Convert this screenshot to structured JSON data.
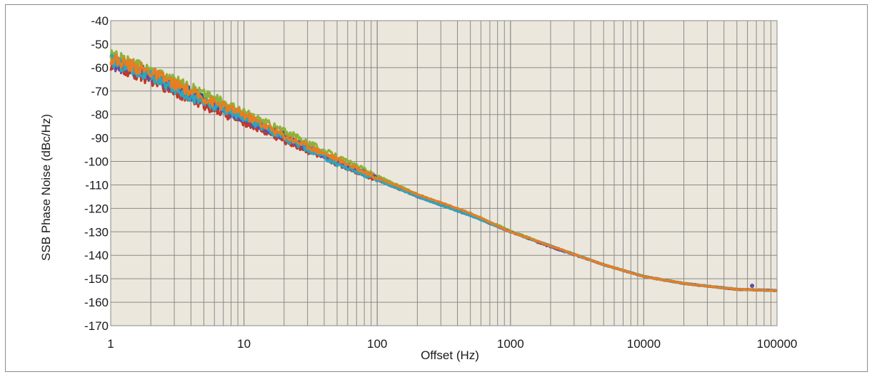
{
  "chart_data": {
    "type": "line",
    "xlabel": "Offset (Hz)",
    "ylabel": "SSB Phase Noise (dBc/Hz)",
    "x_scale": "log",
    "xlim": [
      1,
      100000
    ],
    "ylim": [
      -170,
      -40
    ],
    "x_ticks": [
      "1",
      "10",
      "100",
      "1000",
      "10000",
      "100000"
    ],
    "y_ticks": [
      "-40",
      "-50",
      "-60",
      "-70",
      "-80",
      "-90",
      "-100",
      "-110",
      "-120",
      "-130",
      "-140",
      "-150",
      "-160",
      "-170"
    ],
    "grid": true,
    "plot_background": "#ece7dc",
    "gridline_color": "#8a8a8a",
    "series": [
      {
        "color": "#1f4e9c",
        "x": [
          1,
          2,
          5,
          10,
          20,
          50,
          100,
          200,
          500,
          1000,
          2000,
          5000,
          10000,
          20000,
          50000,
          100000
        ],
        "y": [
          -57,
          -63,
          -73,
          -81,
          -89,
          -100,
          -107,
          -115,
          -123,
          -130,
          -136,
          -144,
          -149,
          -152,
          -154.5,
          -155
        ]
      },
      {
        "color": "#c0392b",
        "x": [
          1,
          2,
          5,
          10,
          20,
          50,
          100,
          200,
          500,
          1000,
          2000,
          5000,
          10000,
          20000,
          50000,
          100000
        ],
        "y": [
          -59,
          -65,
          -76,
          -83,
          -91,
          -101,
          -108,
          -115,
          -123,
          -130,
          -136,
          -144,
          -149,
          -152,
          -154.5,
          -155
        ]
      },
      {
        "color": "#8db23b",
        "x": [
          1,
          2,
          5,
          10,
          20,
          50,
          100,
          200,
          500,
          1000,
          2000,
          5000,
          10000,
          20000,
          50000,
          100000
        ],
        "y": [
          -55,
          -61,
          -71,
          -79,
          -87,
          -98,
          -106,
          -114,
          -122,
          -129.5,
          -136,
          -144,
          -149,
          -152,
          -154.5,
          -155
        ]
      },
      {
        "color": "#6c4a9e",
        "x": [
          1,
          2,
          5,
          10,
          20,
          50,
          100,
          200,
          500,
          1000,
          2000,
          5000,
          10000,
          20000,
          50000,
          100000
        ],
        "y": [
          -58,
          -64,
          -74,
          -82,
          -90,
          -100,
          -107,
          -115,
          -123,
          -130,
          -136.5,
          -144,
          -149,
          -152,
          -154.5,
          -155
        ]
      },
      {
        "color": "#2aa7c0",
        "x": [
          1,
          2,
          5,
          10,
          20,
          50,
          100,
          200,
          500,
          1000,
          2000,
          5000,
          10000,
          20000,
          50000,
          100000
        ],
        "y": [
          -57,
          -64,
          -75,
          -81,
          -90,
          -101,
          -108,
          -115,
          -123,
          -130,
          -136,
          -144,
          -149,
          -152,
          -154.5,
          -155
        ]
      },
      {
        "color": "#e67e22",
        "x": [
          1,
          2,
          5,
          10,
          20,
          50,
          100,
          200,
          500,
          1000,
          2000,
          5000,
          10000,
          20000,
          50000,
          100000
        ],
        "y": [
          -56,
          -62,
          -73,
          -80,
          -89,
          -99,
          -107,
          -114,
          -122,
          -130,
          -136,
          -144,
          -149,
          -152,
          -154.5,
          -155
        ]
      }
    ]
  }
}
